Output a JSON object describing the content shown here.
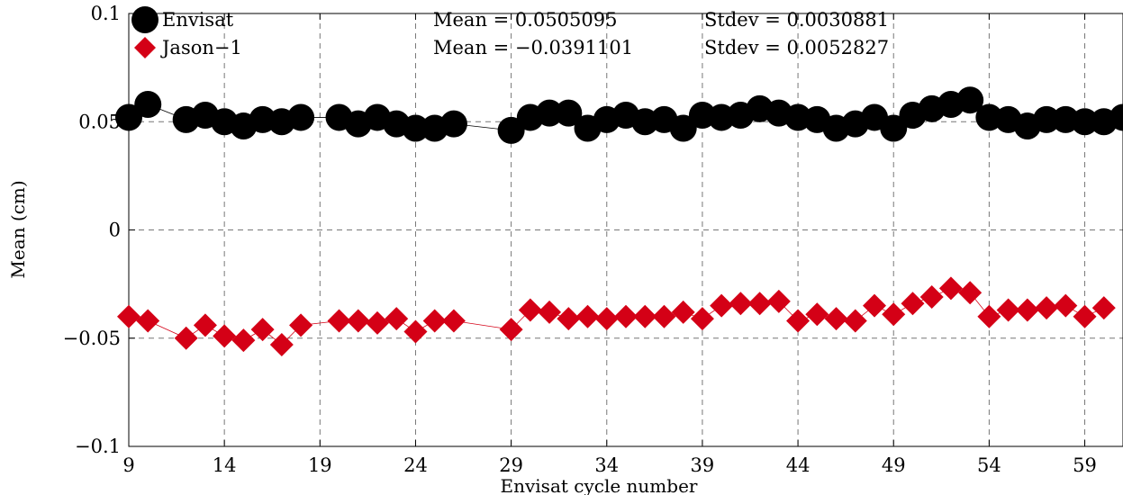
{
  "chart_data": {
    "type": "line",
    "title": "",
    "xlabel": "Envisat cycle number",
    "ylabel": "Mean (cm)",
    "xlim": [
      9,
      61
    ],
    "ylim": [
      -0.1,
      0.1
    ],
    "xticks": [
      9,
      14,
      19,
      24,
      29,
      34,
      39,
      44,
      49,
      54,
      59
    ],
    "yticks": [
      0.1,
      0.05,
      0,
      -0.05,
      -0.1
    ],
    "ytick_labels": [
      "0.1",
      "0.05",
      "0",
      "−0.05",
      "−0.1"
    ],
    "grid": true,
    "legend_position": "top-left",
    "series": [
      {
        "name": "Envisat",
        "color": "#000000",
        "marker": "circle",
        "x": [
          9,
          10,
          12,
          13,
          14,
          15,
          16,
          17,
          18,
          20,
          21,
          22,
          23,
          24,
          25,
          26,
          29,
          30,
          31,
          32,
          33,
          34,
          35,
          36,
          37,
          38,
          39,
          40,
          41,
          42,
          43,
          44,
          45,
          46,
          47,
          48,
          49,
          50,
          51,
          52,
          53,
          54,
          55,
          56,
          57,
          58,
          59,
          60,
          61
        ],
        "values": [
          0.052,
          0.058,
          0.051,
          0.053,
          0.05,
          0.048,
          0.051,
          0.05,
          0.052,
          0.052,
          0.049,
          0.052,
          0.049,
          0.047,
          0.047,
          0.049,
          0.046,
          0.052,
          0.054,
          0.054,
          0.047,
          0.051,
          0.053,
          0.05,
          0.051,
          0.047,
          0.053,
          0.052,
          0.053,
          0.056,
          0.054,
          0.052,
          0.051,
          0.047,
          0.049,
          0.052,
          0.047,
          0.053,
          0.056,
          0.058,
          0.06,
          0.052,
          0.051,
          0.048,
          0.051,
          0.051,
          0.05,
          0.05,
          0.052
        ]
      },
      {
        "name": "Jason−1",
        "color": "#d40016",
        "marker": "diamond",
        "x": [
          9,
          10,
          12,
          13,
          14,
          15,
          16,
          17,
          18,
          20,
          21,
          22,
          23,
          24,
          25,
          26,
          29,
          30,
          31,
          32,
          33,
          34,
          35,
          36,
          37,
          38,
          39,
          40,
          41,
          42,
          43,
          44,
          45,
          46,
          47,
          48,
          49,
          50,
          51,
          52,
          53,
          54,
          55,
          56,
          57,
          58,
          59,
          60
        ],
        "values": [
          -0.04,
          -0.042,
          -0.05,
          -0.044,
          -0.049,
          -0.051,
          -0.046,
          -0.053,
          -0.044,
          -0.042,
          -0.042,
          -0.043,
          -0.041,
          -0.047,
          -0.042,
          -0.042,
          -0.046,
          -0.037,
          -0.038,
          -0.041,
          -0.04,
          -0.041,
          -0.04,
          -0.04,
          -0.04,
          -0.038,
          -0.041,
          -0.035,
          -0.034,
          -0.034,
          -0.033,
          -0.042,
          -0.039,
          -0.041,
          -0.042,
          -0.035,
          -0.039,
          -0.034,
          -0.031,
          -0.027,
          -0.029,
          -0.04,
          -0.037,
          -0.037,
          -0.036,
          -0.035,
          -0.04,
          -0.036
        ]
      }
    ],
    "legend": [
      {
        "name": "Envisat",
        "mean_text": "Mean = 0.0505095",
        "stdev_text": "Stdev = 0.0030881"
      },
      {
        "name": "Jason−1",
        "mean_text": "Mean = −0.0391101",
        "stdev_text": "Stdev = 0.0052827"
      }
    ]
  }
}
